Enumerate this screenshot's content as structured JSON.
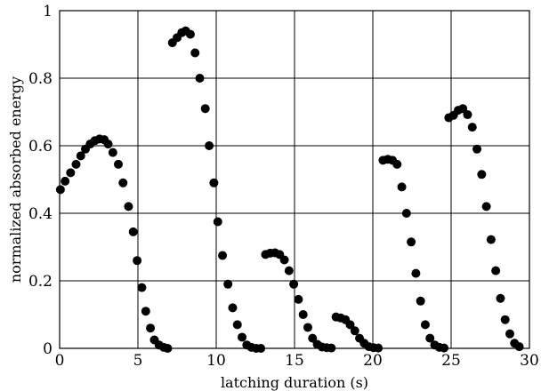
{
  "chart_data": {
    "type": "scatter",
    "title": "",
    "xlabel": "latching duration (s)",
    "ylabel": "normalized absorbed energy",
    "xlim": [
      0,
      30
    ],
    "ylim": [
      0,
      1
    ],
    "x_ticks": [
      "0",
      "5",
      "10",
      "15",
      "20",
      "25",
      "30"
    ],
    "y_ticks": [
      "0",
      "0.2",
      "0.4",
      "0.6",
      "0.8",
      "1"
    ],
    "grid": true,
    "marker_color": "#000000",
    "series": [
      {
        "points": [
          [
            0.05,
            0.47
          ],
          [
            0.35,
            0.495
          ],
          [
            0.7,
            0.52
          ],
          [
            1.05,
            0.545
          ],
          [
            1.35,
            0.57
          ],
          [
            1.65,
            0.59
          ],
          [
            1.95,
            0.605
          ],
          [
            2.25,
            0.615
          ],
          [
            2.55,
            0.62
          ],
          [
            2.85,
            0.618
          ],
          [
            3.1,
            0.605
          ],
          [
            3.4,
            0.58
          ],
          [
            3.75,
            0.545
          ],
          [
            4.05,
            0.49
          ],
          [
            4.4,
            0.42
          ],
          [
            4.7,
            0.345
          ],
          [
            4.95,
            0.26
          ],
          [
            5.25,
            0.18
          ],
          [
            5.5,
            0.11
          ],
          [
            5.8,
            0.06
          ],
          [
            6.05,
            0.025
          ],
          [
            6.35,
            0.01
          ],
          [
            6.65,
            0.003
          ],
          [
            6.9,
            0.0
          ],
          [
            7.2,
            0.905
          ],
          [
            7.5,
            0.92
          ],
          [
            7.8,
            0.935
          ],
          [
            8.05,
            0.94
          ],
          [
            8.35,
            0.93
          ],
          [
            8.65,
            0.875
          ],
          [
            8.95,
            0.8
          ],
          [
            9.3,
            0.71
          ],
          [
            9.55,
            0.6
          ],
          [
            9.85,
            0.49
          ],
          [
            10.1,
            0.375
          ],
          [
            10.4,
            0.275
          ],
          [
            10.75,
            0.19
          ],
          [
            11.05,
            0.12
          ],
          [
            11.35,
            0.07
          ],
          [
            11.65,
            0.033
          ],
          [
            11.95,
            0.01
          ],
          [
            12.25,
            0.003
          ],
          [
            12.55,
            0.0
          ],
          [
            12.85,
            0.0
          ],
          [
            13.15,
            0.278
          ],
          [
            13.45,
            0.282
          ],
          [
            13.75,
            0.283
          ],
          [
            14.05,
            0.278
          ],
          [
            14.35,
            0.262
          ],
          [
            14.65,
            0.23
          ],
          [
            14.95,
            0.19
          ],
          [
            15.25,
            0.145
          ],
          [
            15.55,
            0.1
          ],
          [
            15.85,
            0.062
          ],
          [
            16.15,
            0.03
          ],
          [
            16.45,
            0.012
          ],
          [
            16.75,
            0.004
          ],
          [
            17.05,
            0.002
          ],
          [
            17.35,
            0.001
          ],
          [
            17.65,
            0.093
          ],
          [
            17.95,
            0.09
          ],
          [
            18.25,
            0.085
          ],
          [
            18.55,
            0.07
          ],
          [
            18.85,
            0.052
          ],
          [
            19.15,
            0.03
          ],
          [
            19.45,
            0.015
          ],
          [
            19.75,
            0.005
          ],
          [
            20.05,
            0.002
          ],
          [
            20.35,
            0.001
          ],
          [
            20.65,
            0.557
          ],
          [
            20.95,
            0.56
          ],
          [
            21.25,
            0.557
          ],
          [
            21.55,
            0.545
          ],
          [
            21.85,
            0.478
          ],
          [
            22.15,
            0.4
          ],
          [
            22.45,
            0.315
          ],
          [
            22.75,
            0.222
          ],
          [
            23.05,
            0.14
          ],
          [
            23.35,
            0.07
          ],
          [
            23.65,
            0.03
          ],
          [
            23.95,
            0.01
          ],
          [
            24.25,
            0.003
          ],
          [
            24.55,
            0.001
          ],
          [
            24.85,
            0.683
          ],
          [
            25.15,
            0.69
          ],
          [
            25.45,
            0.705
          ],
          [
            25.75,
            0.71
          ],
          [
            26.05,
            0.692
          ],
          [
            26.35,
            0.655
          ],
          [
            26.65,
            0.59
          ],
          [
            26.95,
            0.515
          ],
          [
            27.25,
            0.42
          ],
          [
            27.55,
            0.322
          ],
          [
            27.85,
            0.23
          ],
          [
            28.15,
            0.148
          ],
          [
            28.45,
            0.085
          ],
          [
            28.75,
            0.043
          ],
          [
            29.05,
            0.015
          ],
          [
            29.35,
            0.005
          ]
        ]
      }
    ]
  }
}
